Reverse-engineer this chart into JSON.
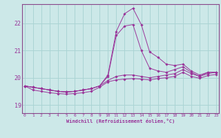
{
  "xlabel": "Windchill (Refroidissement éolien,°C)",
  "bg_color": "#cce8e8",
  "grid_color": "#aad4d4",
  "line_color": "#993399",
  "spine_color": "#884488",
  "x_ticks": [
    0,
    1,
    2,
    3,
    4,
    5,
    6,
    7,
    8,
    9,
    10,
    11,
    12,
    13,
    14,
    15,
    16,
    17,
    18,
    19,
    20,
    21,
    22,
    23
  ],
  "y_ticks": [
    19,
    20,
    21,
    22
  ],
  "xlim": [
    -0.3,
    23.3
  ],
  "ylim": [
    18.7,
    22.7
  ],
  "series": [
    [
      19.7,
      19.65,
      19.6,
      19.55,
      19.5,
      19.48,
      19.5,
      19.55,
      19.6,
      19.7,
      20.1,
      21.7,
      22.35,
      22.55,
      21.95,
      20.95,
      20.75,
      20.5,
      20.45,
      20.5,
      20.25,
      20.1,
      20.2,
      20.2
    ],
    [
      19.7,
      19.65,
      19.6,
      19.55,
      19.5,
      19.48,
      19.5,
      19.55,
      19.6,
      19.7,
      20.05,
      21.55,
      21.9,
      21.95,
      21.0,
      20.35,
      20.25,
      20.2,
      20.3,
      20.4,
      20.2,
      20.05,
      20.2,
      20.2
    ],
    [
      19.7,
      19.65,
      19.6,
      19.55,
      19.5,
      19.48,
      19.5,
      19.55,
      19.6,
      19.7,
      19.9,
      20.05,
      20.1,
      20.1,
      20.05,
      20.0,
      20.05,
      20.1,
      20.15,
      20.3,
      20.15,
      20.05,
      20.15,
      20.2
    ],
    [
      19.7,
      19.55,
      19.5,
      19.45,
      19.42,
      19.4,
      19.42,
      19.45,
      19.5,
      19.65,
      19.85,
      19.92,
      19.95,
      19.97,
      19.95,
      19.92,
      19.97,
      20.0,
      20.05,
      20.2,
      20.05,
      19.98,
      20.08,
      20.12
    ]
  ]
}
